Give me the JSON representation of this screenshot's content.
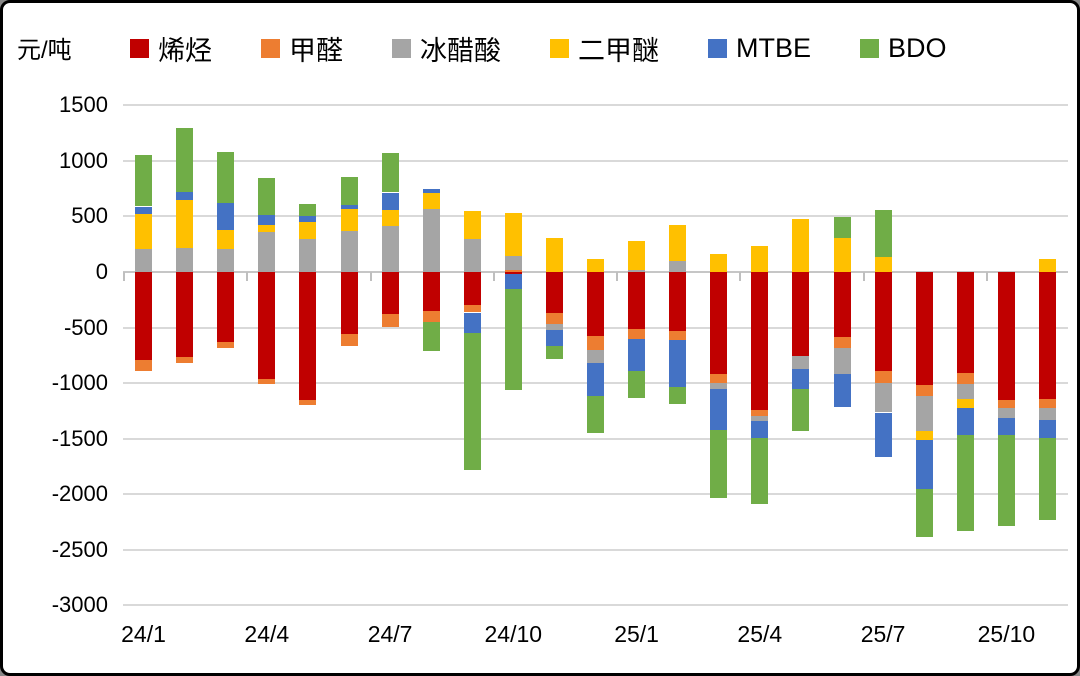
{
  "chart_data": {
    "type": "bar",
    "subtype": "stacked-column",
    "unit_label": "元/吨",
    "categories": [
      "24/1",
      "24/2",
      "24/3",
      "24/4",
      "24/5",
      "24/6",
      "24/7",
      "24/8",
      "24/9",
      "24/10",
      "24/11",
      "24/12",
      "25/1",
      "25/2",
      "25/3",
      "25/4",
      "25/5",
      "25/6",
      "25/7",
      "25/8",
      "25/9",
      "25/10",
      "25/11"
    ],
    "series": [
      {
        "name": "烯烃",
        "color": "#c00000",
        "values": [
          -790,
          -765,
          -630,
          -960,
          -1150,
          -560,
          -375,
          -350,
          -300,
          -15,
          -370,
          -580,
          -510,
          -530,
          -915,
          -1240,
          -755,
          -585,
          -890,
          -1020,
          -905,
          -1150,
          -1145
        ]
      },
      {
        "name": "甲醛",
        "color": "#ed7d31",
        "values": [
          -100,
          -55,
          -50,
          -50,
          -45,
          -105,
          -120,
          -100,
          -65,
          15,
          -95,
          -120,
          -90,
          -85,
          -85,
          -55,
          0,
          -95,
          -110,
          -100,
          -105,
          -70,
          -80
        ]
      },
      {
        "name": "冰醋酸",
        "color": "#a5a5a5",
        "values": [
          210,
          220,
          205,
          360,
          300,
          370,
          415,
          565,
          295,
          125,
          -55,
          -115,
          20,
          100,
          -50,
          -45,
          -115,
          -240,
          -265,
          -315,
          -130,
          -95,
          -105
        ]
      },
      {
        "name": "二甲醚",
        "color": "#ffc000",
        "values": [
          310,
          430,
          170,
          60,
          150,
          195,
          140,
          150,
          255,
          390,
          310,
          120,
          255,
          320,
          165,
          230,
          480,
          310,
          135,
          -80,
          -85,
          0,
          120
        ]
      },
      {
        "name": "MTBE",
        "color": "#4472c4",
        "values": [
          70,
          70,
          245,
          90,
          55,
          40,
          160,
          35,
          -180,
          -140,
          -145,
          -305,
          -290,
          -420,
          -375,
          -155,
          -180,
          -295,
          -400,
          -435,
          -245,
          -150,
          -165
        ]
      },
      {
        "name": "BDO",
        "color": "#70ad47",
        "values": [
          465,
          575,
          465,
          340,
          110,
          255,
          355,
          -260,
          -1240,
          -910,
          -115,
          -330,
          -245,
          -155,
          -610,
          -595,
          -385,
          185,
          420,
          -435,
          -860,
          -825,
          -735
        ]
      }
    ],
    "ylim": [
      -3000,
      1500
    ],
    "y_ticks": [
      1500,
      1000,
      500,
      0,
      -500,
      -1000,
      -1500,
      -2000,
      -2500,
      -3000
    ],
    "x_tick_labels": [
      "24/1",
      "24/4",
      "24/7",
      "24/10",
      "25/1",
      "25/4",
      "25/7",
      "25/10"
    ],
    "x_tick_indices": [
      0,
      3,
      6,
      9,
      12,
      15,
      18,
      21
    ],
    "grid": true,
    "legend_position": "top"
  }
}
